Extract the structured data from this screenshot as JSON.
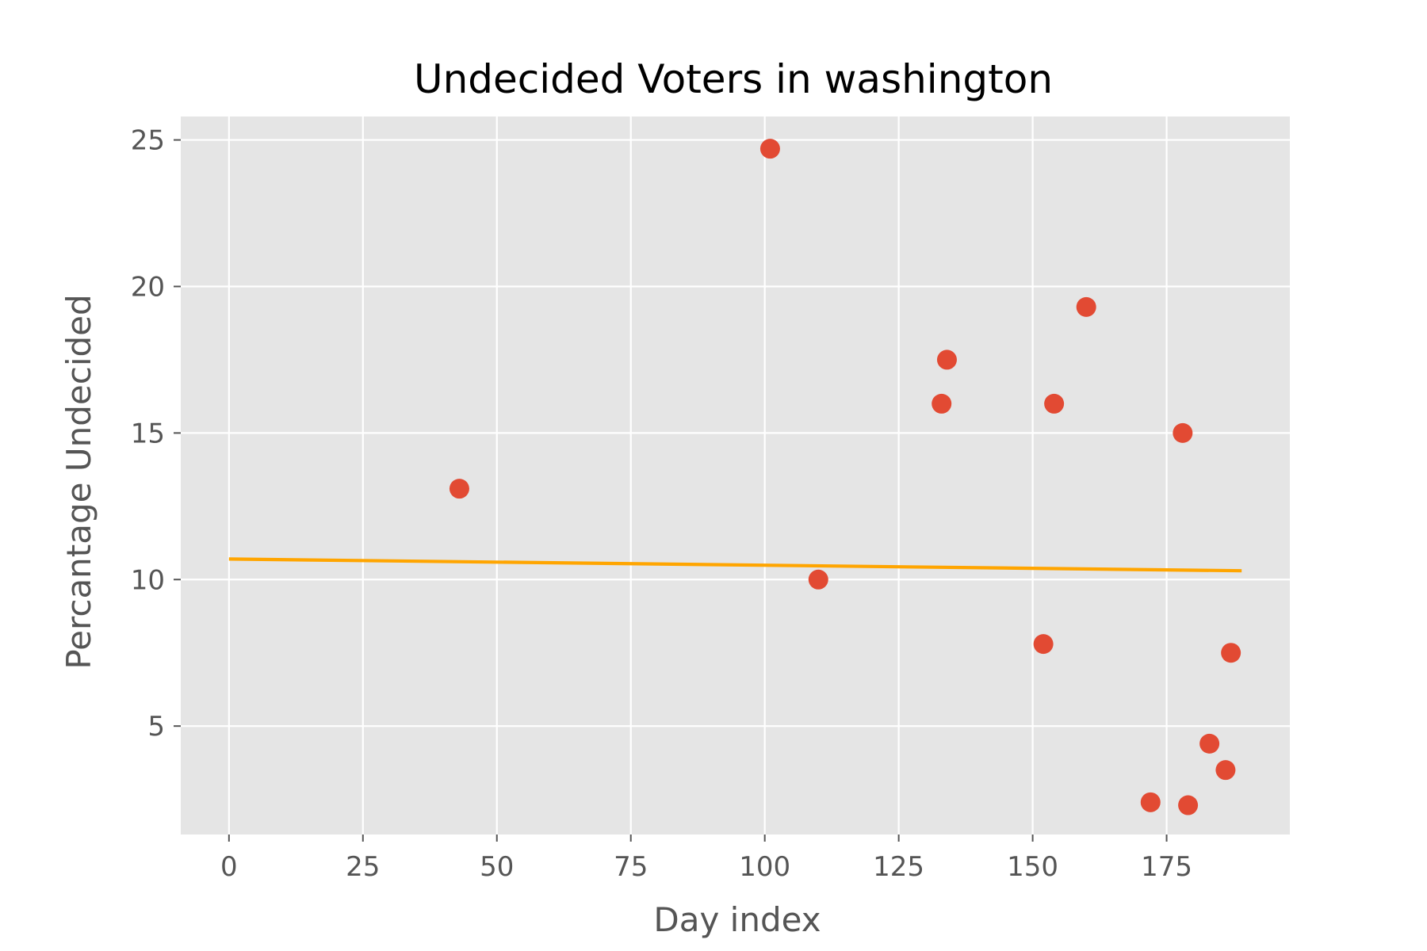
{
  "chart_data": {
    "type": "scatter",
    "title": "Undecided Voters in washington",
    "xlabel": "Day index",
    "ylabel": "Percantage Undecided",
    "xlim": [
      -9,
      198
    ],
    "ylim": [
      1.3,
      25.8
    ],
    "x_ticks": [
      0,
      25,
      50,
      75,
      100,
      125,
      150,
      175
    ],
    "y_ticks": [
      5,
      10,
      15,
      20,
      25
    ],
    "grid": true,
    "colors": {
      "background": "#e5e5e5",
      "grid": "#ffffff",
      "points": "#e24a33",
      "trend": "#ffa500"
    },
    "series": [
      {
        "type": "scatter",
        "points": [
          {
            "x": 43,
            "y": 13.1
          },
          {
            "x": 101,
            "y": 24.7
          },
          {
            "x": 110,
            "y": 10.0
          },
          {
            "x": 133,
            "y": 16.0
          },
          {
            "x": 134,
            "y": 17.5
          },
          {
            "x": 152,
            "y": 7.8
          },
          {
            "x": 154,
            "y": 16.0
          },
          {
            "x": 160,
            "y": 19.3
          },
          {
            "x": 172,
            "y": 2.4
          },
          {
            "x": 178,
            "y": 15.0
          },
          {
            "x": 179,
            "y": 2.3
          },
          {
            "x": 183,
            "y": 4.4
          },
          {
            "x": 186,
            "y": 3.5
          },
          {
            "x": 187,
            "y": 7.5
          }
        ]
      },
      {
        "type": "line",
        "points": [
          {
            "x": 0,
            "y": 10.7
          },
          {
            "x": 189,
            "y": 10.3
          }
        ]
      }
    ]
  }
}
